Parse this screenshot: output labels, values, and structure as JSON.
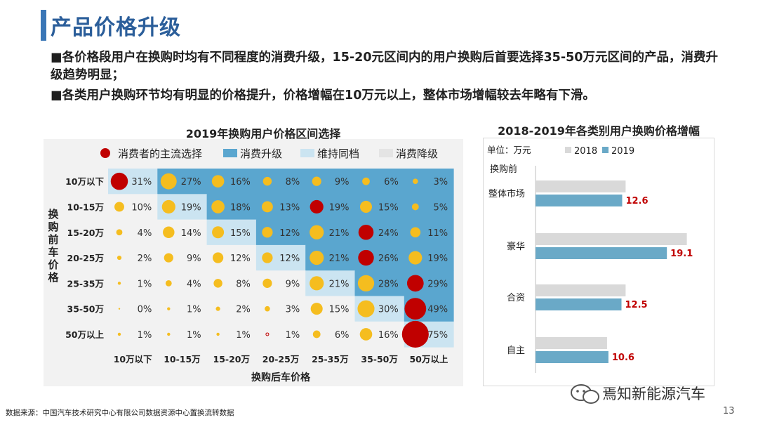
{
  "header": {
    "title": "产品价格升级",
    "bullets": [
      "■各价格段用户在换购时均有不同程度的消费升级，15-20元区间内的用户换购后首要选择35-50万元区间的产品，消费升级趋势明显；",
      "■各类用户换购环节均有明显的价格提升，价格增幅在10万元以上，整体市场增幅较去年略有下滑。"
    ]
  },
  "colors": {
    "upgrade": "#5aa6cf",
    "maintain": "#cbe4f1",
    "downgrade": "#f2f2f2",
    "bubble_main": "#c00000",
    "bubble_other": "#f5bd1f",
    "bar_2018": "#d9d9d9",
    "bar_2019": "#6aa9c7",
    "value_label": "#c00000"
  },
  "chart_data": [
    {
      "type": "heatmap",
      "title": "2019年换购用户价格区间选择",
      "legend": [
        "消费者的主流选择",
        "消费升级",
        "维持同档",
        "消费降级"
      ],
      "ylabel": "换购前车价格",
      "xlabel": "换购后车价格",
      "rows": [
        "10万以下",
        "10-15万",
        "15-20万",
        "20-25万",
        "25-35万",
        "35-50万",
        "50万以上"
      ],
      "cols": [
        "10万以下",
        "10-15万",
        "15-20万",
        "20-25万",
        "25-35万",
        "35-50万",
        "50万以上"
      ],
      "values": [
        [
          31,
          27,
          16,
          8,
          9,
          6,
          3
        ],
        [
          10,
          19,
          18,
          13,
          19,
          15,
          5
        ],
        [
          4,
          14,
          15,
          12,
          21,
          24,
          11
        ],
        [
          2,
          9,
          12,
          12,
          21,
          26,
          19
        ],
        [
          1,
          4,
          8,
          9,
          21,
          28,
          29
        ],
        [
          0,
          1,
          2,
          3,
          15,
          30,
          49
        ],
        [
          1,
          1,
          1,
          1,
          6,
          16,
          75
        ]
      ],
      "value_suffix": "%",
      "mainstream": [
        [
          0,
          0
        ],
        [
          1,
          4
        ],
        [
          2,
          5
        ],
        [
          3,
          5
        ],
        [
          4,
          6
        ],
        [
          5,
          6
        ],
        [
          6,
          6
        ]
      ]
    },
    {
      "type": "bar",
      "title": "2018-2019年各类别用户换购价格增幅",
      "unit_label": "单位：万元",
      "category_axis_title": "换购前",
      "categories": [
        "整体市场",
        "豪华",
        "合资",
        "自主"
      ],
      "series": [
        {
          "name": "2018",
          "values": [
            13.1,
            22.0,
            13.1,
            10.4
          ]
        },
        {
          "name": "2019",
          "values": [
            12.6,
            19.1,
            12.5,
            10.6
          ]
        }
      ],
      "labeled_series": "2019"
    }
  ],
  "footer": {
    "source": "数据来源：中国汽车技术研究中心有限公司数据资源中心置换流转数据",
    "watermark": "焉知新能源汽车",
    "page": "13"
  }
}
